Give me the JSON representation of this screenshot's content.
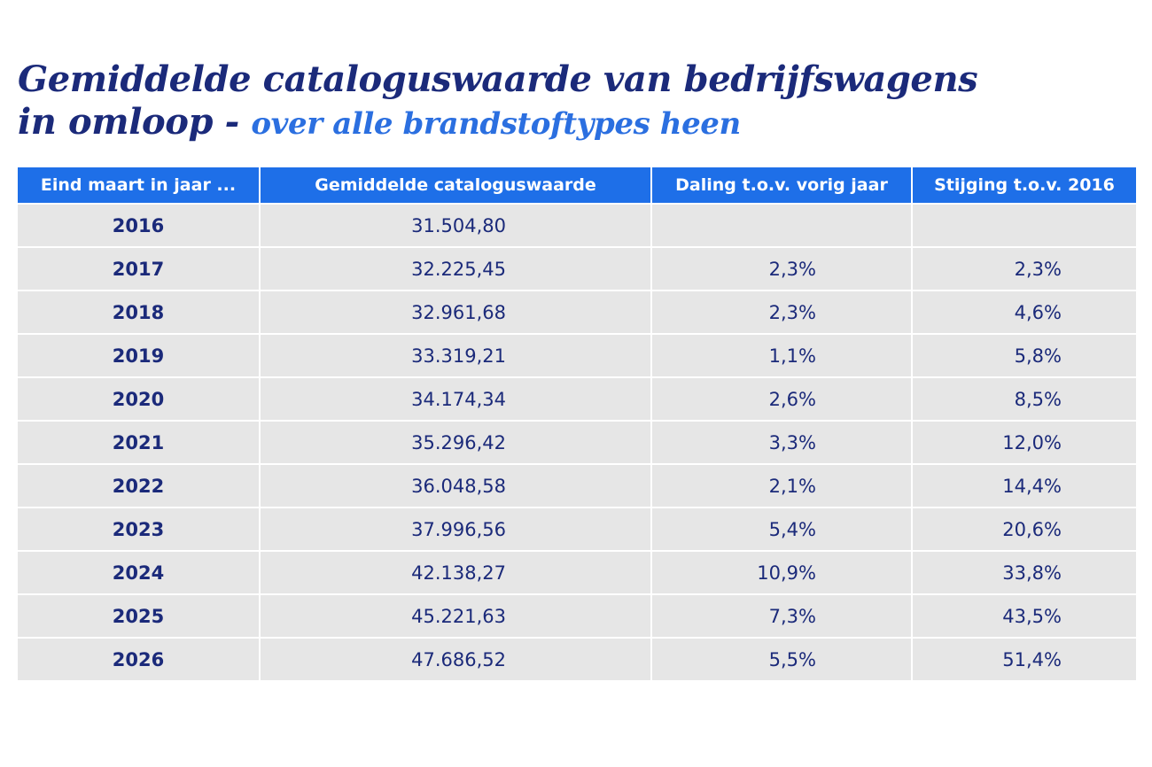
{
  "title": {
    "line1": "Gemiddelde cataloguswaarde van bedrijfswagens",
    "line2_main": "in omloop",
    "line2_sep": " - ",
    "subtitle": "over alle brandstoftypes heen"
  },
  "chart_data": {
    "type": "table",
    "columns": [
      "Eind maart in jaar ...",
      "Gemiddelde cataloguswaarde",
      "Daling t.o.v. vorig jaar",
      "Stijging t.o.v. 2016"
    ],
    "rows": [
      [
        "2016",
        "31.504,80",
        "",
        ""
      ],
      [
        "2017",
        "32.225,45",
        "2,3%",
        "2,3%"
      ],
      [
        "2018",
        "32.961,68",
        "2,3%",
        "4,6%"
      ],
      [
        "2019",
        "33.319,21",
        "1,1%",
        "5,8%"
      ],
      [
        "2020",
        "34.174,34",
        "2,6%",
        "8,5%"
      ],
      [
        "2021",
        "35.296,42",
        "3,3%",
        "12,0%"
      ],
      [
        "2022",
        "36.048,58",
        "2,1%",
        "14,4%"
      ],
      [
        "2023",
        "37.996,56",
        "5,4%",
        "20,6%"
      ],
      [
        "2024",
        "42.138,27",
        "10,9%",
        "33,8%"
      ],
      [
        "2025",
        "45.221,63",
        "7,3%",
        "43,5%"
      ],
      [
        "2026",
        "47.686,52",
        "5,5%",
        "51,4%"
      ]
    ]
  },
  "colors": {
    "title": "#1b2a7a",
    "subtitle": "#2b6fe0",
    "header_bg": "#1e6fe8",
    "header_text": "#ffffff",
    "cell_bg": "#e6e6e6",
    "cell_text": "#1b2a7a"
  }
}
